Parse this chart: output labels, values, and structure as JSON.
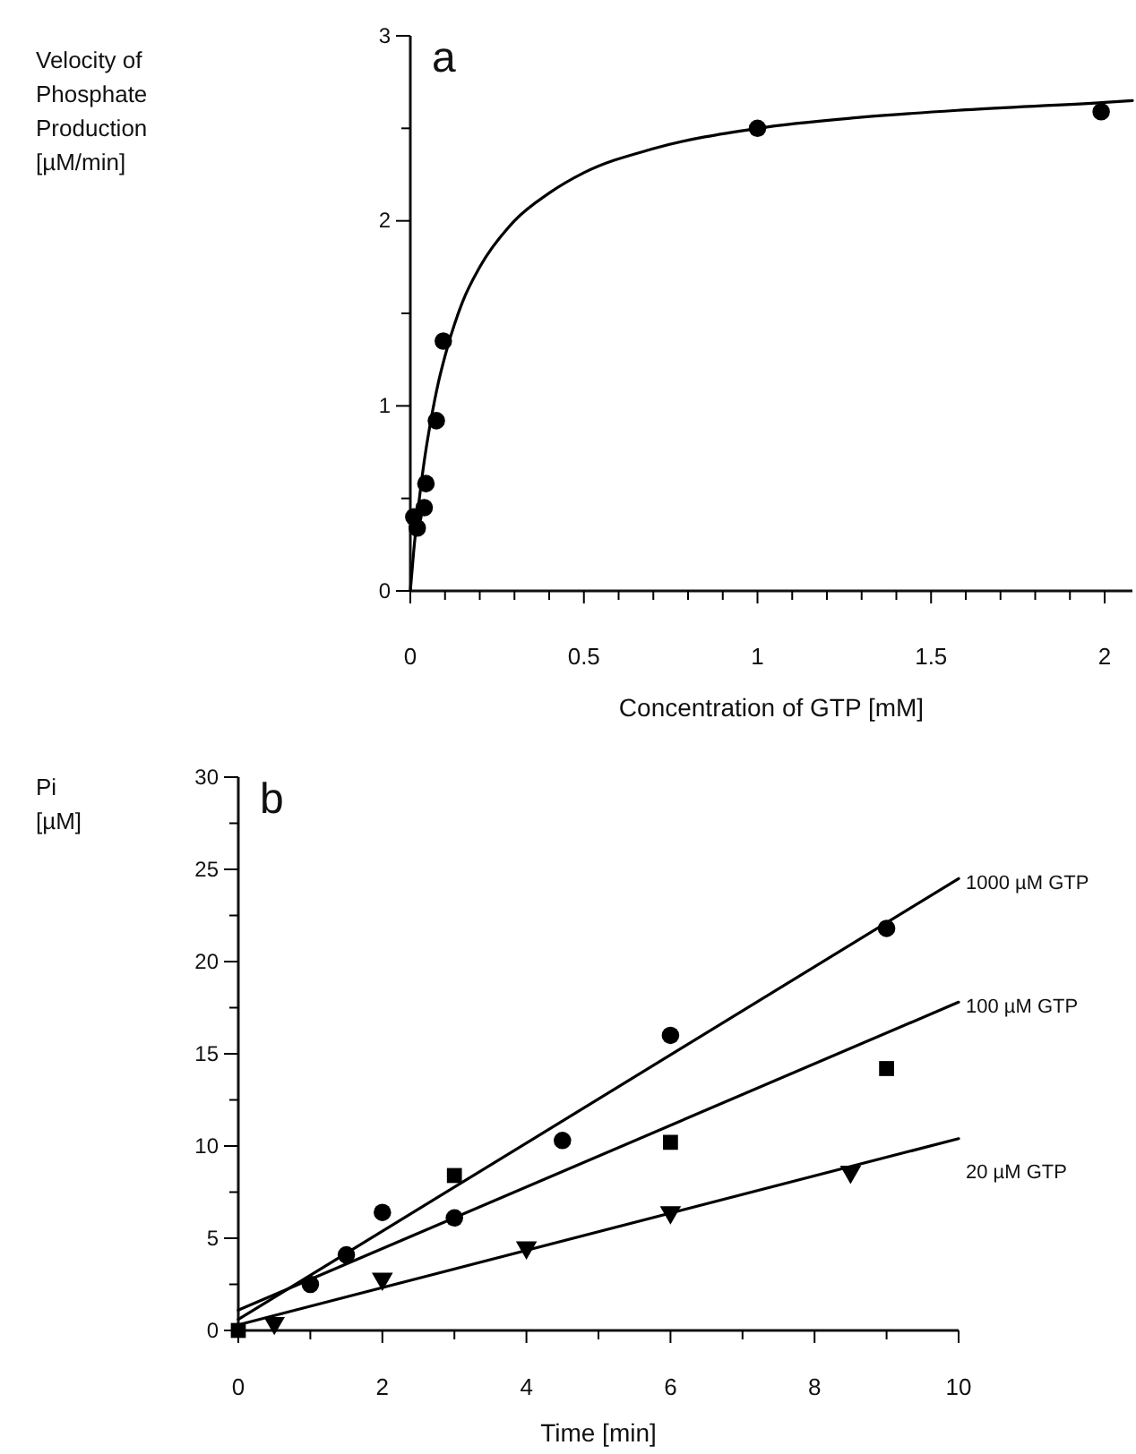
{
  "chart_data": [
    {
      "type": "scatter",
      "title": "a",
      "xlabel": "Concentration of GTP [mM]",
      "ylabel": "Velocity of Phosphate Production [µM/min]",
      "xlim": [
        0,
        2.08
      ],
      "xticks": [
        0,
        {
          "value": 0.1,
          "label": null
        },
        {
          "value": 0.2,
          "label": null
        },
        {
          "value": 0.3,
          "label": null
        },
        {
          "value": 0.4,
          "label": null
        },
        0.5,
        {
          "value": 0.6,
          "label": null
        },
        {
          "value": 0.7,
          "label": null
        },
        {
          "value": 0.8,
          "label": null
        },
        {
          "value": 0.9,
          "label": null
        },
        1,
        {
          "value": 1.1,
          "label": null
        },
        {
          "value": 1.2,
          "label": null
        },
        {
          "value": 1.3,
          "label": null
        },
        {
          "value": 1.4,
          "label": null
        },
        1.5,
        {
          "value": 1.6,
          "label": null
        },
        {
          "value": 1.7,
          "label": null
        },
        {
          "value": 1.8,
          "label": null
        },
        {
          "value": 1.9,
          "label": null
        },
        2
      ],
      "ylim": [
        0,
        3
      ],
      "yticks": [
        0,
        {
          "value": 0.5,
          "label": null
        },
        1,
        {
          "value": 1.5,
          "label": null
        },
        2,
        {
          "value": 2.5,
          "label": null
        },
        3
      ],
      "series": [
        {
          "color": "#000000",
          "marker": "circle",
          "x": [
            0.01,
            0.02,
            0.04,
            0.045,
            0.075,
            0.095,
            1.0,
            1.99
          ],
          "values": [
            0.4,
            0.34,
            0.45,
            0.58,
            0.92,
            1.35,
            2.5,
            2.59
          ]
        },
        {
          "type": "line",
          "color": "#000000",
          "x": [
            0,
            0.01,
            0.02,
            0.04,
            0.06,
            0.08,
            0.1,
            0.15,
            0.2,
            0.3,
            0.4,
            0.5,
            0.7,
            1.0,
            1.3,
            1.6,
            2.0,
            2.08
          ],
          "values": [
            0,
            0.22,
            0.4,
            0.7,
            0.93,
            1.12,
            1.27,
            1.56,
            1.75,
            2.0,
            2.15,
            2.26,
            2.39,
            2.5,
            2.56,
            2.6,
            2.64,
            2.65
          ]
        }
      ]
    },
    {
      "type": "scatter",
      "title": "b",
      "xlabel": "Time [min]",
      "ylabel": "Pi [µM]",
      "xlim": [
        0,
        10
      ],
      "xticks": [
        0,
        {
          "value": 1,
          "label": null
        },
        2,
        {
          "value": 3,
          "label": null
        },
        4,
        {
          "value": 5,
          "label": null
        },
        6,
        {
          "value": 7,
          "label": null
        },
        8,
        {
          "value": 9,
          "label": null
        },
        10
      ],
      "ylim": [
        0,
        30
      ],
      "yticks": [
        0,
        {
          "value": 2.5,
          "label": null
        },
        5,
        {
          "value": 7.5,
          "label": null
        },
        10,
        {
          "value": 12.5,
          "label": null
        },
        15,
        {
          "value": 17.5,
          "label": null
        },
        20,
        {
          "value": 22.5,
          "label": null
        },
        25,
        {
          "value": 27.5,
          "label": null
        },
        30
      ],
      "series": [
        {
          "color": "#000000",
          "marker": "circle",
          "x": [
            1.0,
            1.5,
            2.0,
            3.0,
            4.5,
            6.0,
            9.0
          ],
          "values": [
            2.5,
            4.1,
            6.4,
            6.1,
            10.3,
            16.0,
            21.8
          ]
        },
        {
          "color": "#000000",
          "marker": "square",
          "x": [
            0,
            3.0,
            6.0,
            9.0
          ],
          "values": [
            0,
            8.4,
            10.2,
            14.2
          ]
        },
        {
          "color": "#000000",
          "marker": "triangle",
          "x": [
            0.5,
            2.0,
            4.0,
            6.0,
            8.5
          ],
          "values": [
            0.4,
            2.8,
            4.5,
            6.4,
            8.6
          ]
        },
        {
          "type": "line",
          "name": "1000 µM GTP",
          "color": "#000000",
          "x": [
            0,
            10
          ],
          "values": [
            0.6,
            24.5
          ]
        },
        {
          "type": "line",
          "name": "100 µM GTP",
          "color": "#000000",
          "x": [
            0,
            10
          ],
          "values": [
            1.1,
            17.8
          ]
        },
        {
          "type": "line",
          "name": "20 µM GTP",
          "color": "#000000",
          "x": [
            0,
            10
          ],
          "values": [
            0.3,
            10.4
          ]
        }
      ]
    }
  ]
}
